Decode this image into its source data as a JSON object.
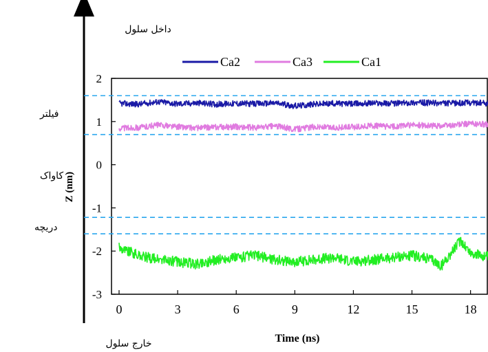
{
  "chart_data": {
    "type": "line",
    "xlabel": "Time (ns)",
    "ylabel": "Z (nm)",
    "xlim": [
      0,
      19
    ],
    "ylim": [
      -3,
      2
    ],
    "x_ticks": [
      0,
      3,
      6,
      9,
      12,
      15,
      18
    ],
    "y_ticks": [
      2,
      1,
      0,
      -1,
      -2,
      -3
    ],
    "legend_position": "top",
    "legend": [
      "Ca2",
      "Ca3",
      "Ca1"
    ],
    "series": [
      {
        "name": "Ca2",
        "color": "#1a1aa6",
        "x": [
          0,
          1,
          2,
          3,
          4,
          5,
          6,
          7,
          8,
          9,
          10,
          11,
          12,
          13,
          14,
          15,
          16,
          17,
          18,
          19
        ],
        "y": [
          1.42,
          1.4,
          1.46,
          1.41,
          1.43,
          1.4,
          1.42,
          1.41,
          1.43,
          1.36,
          1.4,
          1.42,
          1.41,
          1.43,
          1.42,
          1.44,
          1.43,
          1.42,
          1.44,
          1.42
        ]
      },
      {
        "name": "Ca3",
        "color": "#e07be0",
        "x": [
          0,
          1,
          2,
          3,
          4,
          5,
          6,
          7,
          8,
          9,
          10,
          11,
          12,
          13,
          14,
          15,
          16,
          17,
          18,
          19
        ],
        "y": [
          0.85,
          0.86,
          0.92,
          0.88,
          0.85,
          0.87,
          0.88,
          0.86,
          0.9,
          0.82,
          0.88,
          0.86,
          0.87,
          0.9,
          0.88,
          0.92,
          0.9,
          0.91,
          0.95,
          0.93
        ]
      },
      {
        "name": "Ca1",
        "color": "#22ee22",
        "x": [
          0,
          0.5,
          1,
          1.5,
          2,
          3,
          4,
          5,
          6,
          7,
          8,
          9,
          10,
          11,
          12,
          13,
          14,
          15,
          16,
          16.5,
          17,
          17.5,
          18,
          18.5,
          19
        ],
        "y": [
          -1.9,
          -2.0,
          -2.1,
          -2.15,
          -2.2,
          -2.25,
          -2.3,
          -2.2,
          -2.15,
          -2.1,
          -2.2,
          -2.25,
          -2.2,
          -2.15,
          -2.25,
          -2.2,
          -2.15,
          -2.1,
          -2.2,
          -2.35,
          -2.05,
          -1.75,
          -2.05,
          -2.1,
          -2.15
        ]
      }
    ],
    "reference_lines": [
      {
        "axis": "y",
        "value": 1.6,
        "color": "#29a6ee",
        "style": "dashed"
      },
      {
        "axis": "y",
        "value": 0.7,
        "color": "#29a6ee",
        "style": "dashed"
      },
      {
        "axis": "y",
        "value": -1.22,
        "color": "#29a6ee",
        "style": "dashed"
      },
      {
        "axis": "y",
        "value": -1.6,
        "color": "#29a6ee",
        "style": "dashed"
      }
    ],
    "side_annotations": {
      "inside_cell": "داخل سلول",
      "outside_cell": "خارج سلول",
      "filter": "فیلتر",
      "cavity": "کاواک",
      "gate": "دریچه"
    }
  }
}
